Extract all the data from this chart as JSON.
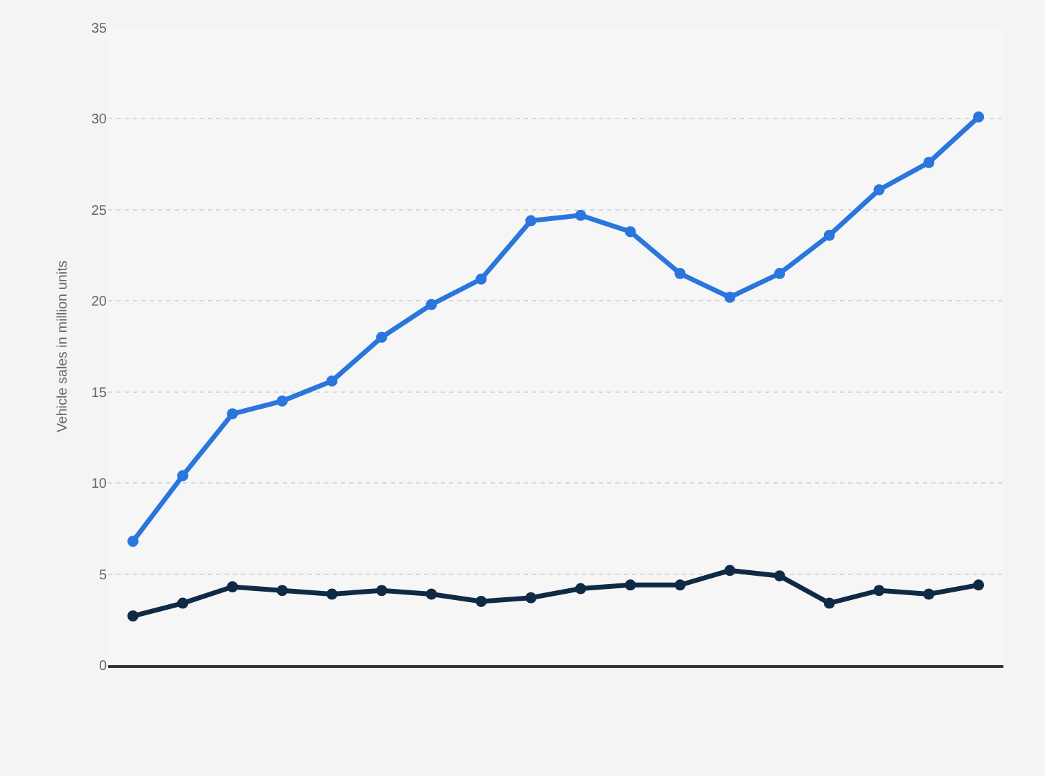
{
  "chart_data": {
    "type": "line",
    "ylabel": "Vehicle sales in million units",
    "categories": [
      null,
      null,
      null,
      null,
      null,
      null,
      null,
      null,
      null,
      null,
      null,
      null,
      null,
      null,
      null,
      null,
      null,
      null
    ],
    "series": [
      {
        "color": "#2a76dd",
        "values": [
          6.8,
          10.4,
          13.8,
          14.5,
          15.6,
          18.0,
          19.8,
          21.2,
          24.4,
          24.7,
          23.8,
          21.5,
          20.2,
          21.5,
          23.6,
          26.1,
          27.6,
          30.1
        ]
      },
      {
        "color": "#0f2a44",
        "values": [
          2.7,
          3.4,
          4.3,
          4.1,
          3.9,
          4.1,
          3.9,
          3.5,
          3.7,
          4.2,
          4.4,
          4.4,
          5.2,
          4.9,
          3.4,
          4.1,
          3.9,
          4.4
        ]
      }
    ],
    "ylim": [
      0,
      35
    ],
    "yticks": [
      0,
      5,
      10,
      15,
      20,
      25,
      30,
      35
    ],
    "grid": "y",
    "legend": false,
    "marker": "circle",
    "line_style": "solid",
    "tick_labels": "y"
  }
}
